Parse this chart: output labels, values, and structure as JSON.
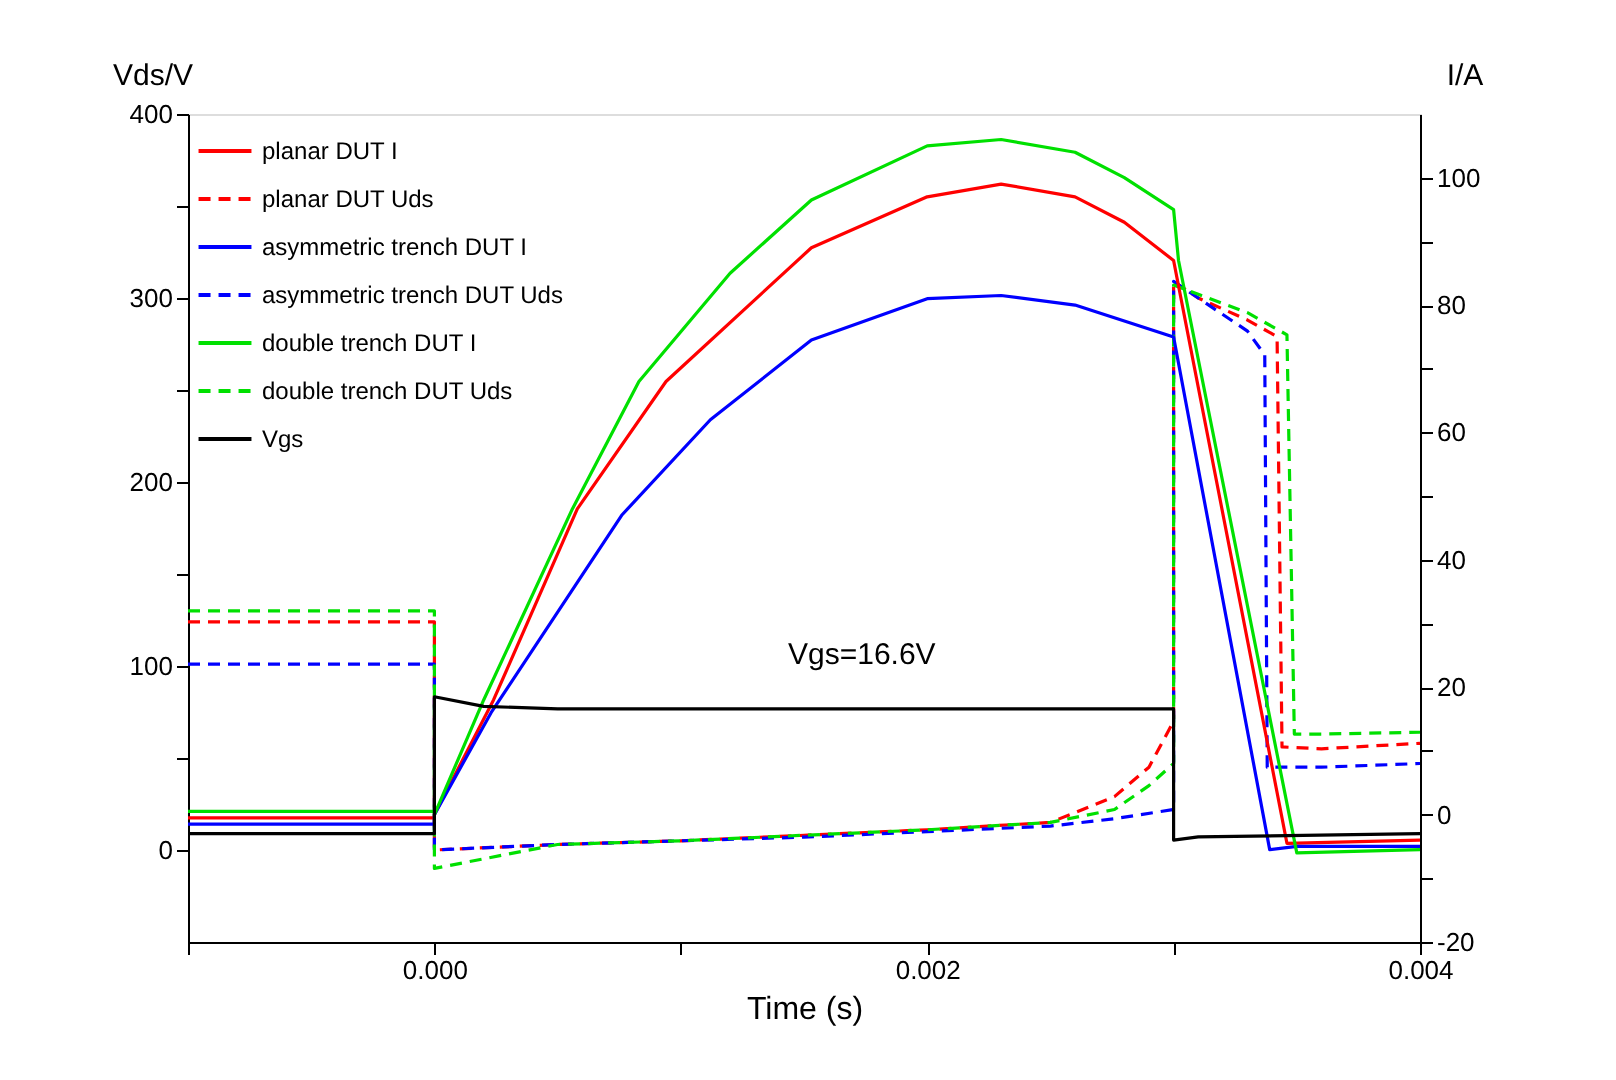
{
  "chart_data": {
    "type": "line",
    "xlabel": "Time (s)",
    "ylabel": "Vds/V",
    "y2label": "I/A",
    "xlim": [
      -0.001,
      0.004
    ],
    "xticks": [
      {
        "value": -0.001,
        "label": null
      },
      {
        "value": 0,
        "label": "0.000"
      },
      {
        "value": 0.001,
        "label": null
      },
      {
        "value": 0.002,
        "label": "0.002"
      },
      {
        "value": 0.003,
        "label": null
      },
      {
        "value": 0.004,
        "label": "0.004"
      }
    ],
    "ylim": [
      -50,
      400
    ],
    "yticks": [
      0,
      {
        "value": 50,
        "label": null
      },
      100,
      {
        "value": 150,
        "label": null
      },
      200,
      {
        "value": 250,
        "label": null
      },
      300,
      {
        "value": 350,
        "label": null
      },
      400
    ],
    "y2lim": [
      -20,
      110
    ],
    "y2ticks": [
      -20,
      {
        "value": -10,
        "label": null
      },
      0,
      {
        "value": 10,
        "label": null
      },
      20,
      {
        "value": 30,
        "label": null
      },
      40,
      {
        "value": 50,
        "label": null
      },
      60,
      {
        "value": 70,
        "label": null
      },
      80,
      {
        "value": 90,
        "label": null
      },
      100
    ],
    "legend": "top left",
    "grid": false,
    "annotations": [
      "Vgs=16.6V"
    ],
    "series": [
      {
        "name": "planar DUT I",
        "color": "#ff0000",
        "line_style": "solid",
        "axis": "y2",
        "x": [
          -0.001,
          0,
          0,
          0.00024,
          0.00058,
          0.00094,
          0.00153,
          0.002,
          0.0023,
          0.0026,
          0.0028,
          0.003,
          0.00346,
          0.004
        ],
        "values": [
          -0.5,
          -0.5,
          0,
          18,
          48,
          68,
          89,
          97,
          99,
          97,
          93,
          87,
          -4.5,
          -4
        ]
      },
      {
        "name": "planar DUT Uds",
        "color": "#ff0000",
        "line_style": "dashed",
        "x": [
          -0.001,
          0,
          0,
          0.0005,
          0.001,
          0.0015,
          0.002,
          0.0025,
          0.00276,
          0.0029,
          0.003,
          0.003,
          0.0031,
          0.0033,
          0.00342,
          0.00344,
          0.0036,
          0.004
        ],
        "values": [
          124,
          124,
          0,
          3,
          5,
          8,
          11,
          15,
          29,
          45,
          70,
          309,
          300,
          288,
          279,
          56,
          55,
          58
        ]
      },
      {
        "name": "asymmetric trench DUT I",
        "color": "#0000ff",
        "line_style": "solid",
        "axis": "y2",
        "x": [
          -0.001,
          0,
          0,
          0.00023,
          0.00076,
          0.00112,
          0.00153,
          0.002,
          0.0023,
          0.0026,
          0.003,
          0.00339,
          0.0035,
          0.004
        ],
        "values": [
          -1.5,
          -1.5,
          0,
          16,
          47,
          62,
          74.5,
          81,
          81.5,
          80,
          75,
          -5.5,
          -5,
          -5
        ]
      },
      {
        "name": "asymmetric trench DUT Uds",
        "color": "#0000ff",
        "line_style": "dashed",
        "x": [
          -0.001,
          0,
          0,
          0.0005,
          0.001,
          0.0015,
          0.002,
          0.0025,
          0.00276,
          0.003,
          0.003,
          0.0031,
          0.0033,
          0.00337,
          0.00338,
          0.0036,
          0.004
        ],
        "values": [
          101,
          101,
          0,
          3,
          5,
          7,
          10,
          13,
          17,
          22,
          309,
          300,
          282,
          269,
          45,
          45,
          47
        ]
      },
      {
        "name": "double trench DUT I",
        "color": "#00e000",
        "line_style": "solid",
        "axis": "y2",
        "x": [
          -0.001,
          0,
          0,
          0.0002,
          0.00056,
          0.00083,
          0.0012,
          0.00153,
          0.002,
          0.0023,
          0.0026,
          0.0028,
          0.003,
          0.00302,
          0.0035,
          0.004
        ],
        "values": [
          0.5,
          0.5,
          0,
          18,
          48,
          68,
          85,
          96.5,
          105,
          106,
          104,
          100,
          95,
          87,
          -6,
          -5.5
        ]
      },
      {
        "name": "double trench DUT Uds",
        "color": "#00e000",
        "line_style": "dashed",
        "x": [
          -0.001,
          0,
          0,
          0.0005,
          0.001,
          0.0015,
          0.002,
          0.0025,
          0.00276,
          0.0029,
          0.003,
          0.003,
          0.0031,
          0.0033,
          0.00346,
          0.00349,
          0.0036,
          0.004
        ],
        "values": [
          130,
          130,
          -10,
          3,
          5,
          8,
          11,
          15,
          22,
          35,
          47,
          307,
          302,
          292,
          280,
          63,
          63,
          64
        ]
      },
      {
        "name": "Vgs",
        "color": "#000000",
        "line_style": "solid",
        "axis": "y2",
        "x": [
          -0.001,
          0,
          0,
          0.0002,
          0.0005,
          0.003,
          0.003,
          0.0031,
          0.004
        ],
        "values": [
          -3,
          -3,
          18.5,
          17,
          16.6,
          16.6,
          -4,
          -3.5,
          -3
        ]
      }
    ]
  }
}
